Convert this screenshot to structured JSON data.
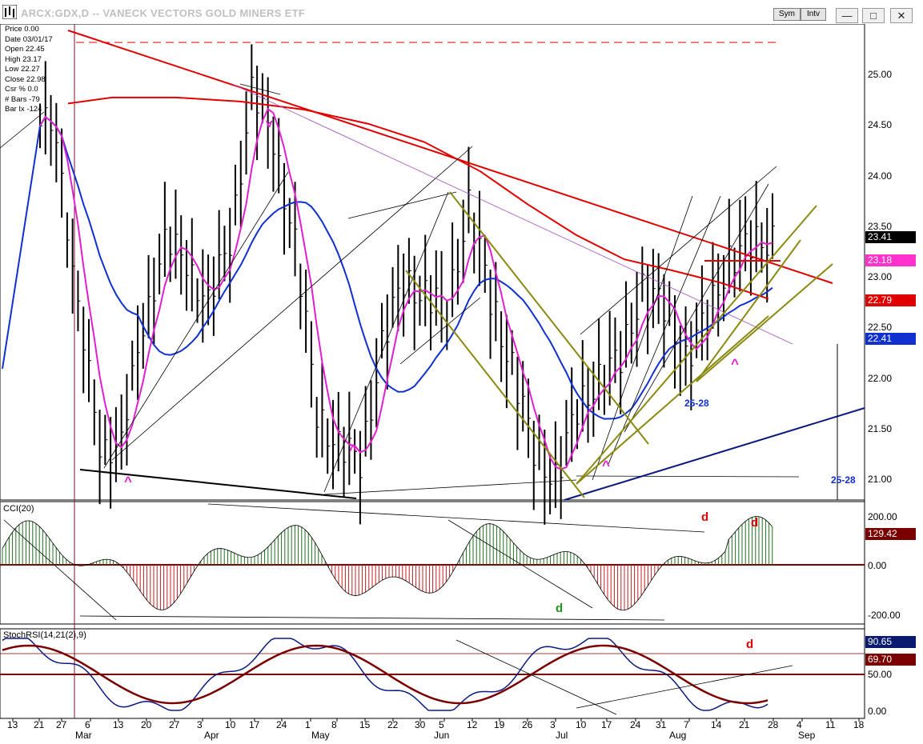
{
  "window": {
    "title": "ARCX:GDX,D -- VANECK VECTORS GOLD MINERS ETF",
    "buttons": [
      "Sym",
      "Intv"
    ]
  },
  "info_panel": [
    {
      "label": "Price",
      "value": "0.00"
    },
    {
      "label": "Date",
      "value": "03/01/17"
    },
    {
      "label": "Open",
      "value": "22.45"
    },
    {
      "label": "High",
      "value": "23.17"
    },
    {
      "label": "Low",
      "value": "22.27"
    },
    {
      "label": "Close",
      "value": "22.98"
    },
    {
      "label": "Csr %",
      "value": "0.0"
    },
    {
      "label": "# Bars",
      "value": "-79"
    },
    {
      "label": "Bar Ix",
      "value": "-124"
    }
  ],
  "panels": {
    "cci_title": "CCI(20)",
    "stochrsi_title": "StochRSI(14,21(2),9)"
  },
  "price_axis": [
    "25.00",
    "24.50",
    "24.00",
    "23.50",
    "23.00",
    "22.50",
    "22.00",
    "21.50",
    "21.00"
  ],
  "cci_axis": [
    "200.00",
    "0.00",
    "-200.00"
  ],
  "stoch_axis": [
    "50.00",
    "0.00"
  ],
  "value_tags": [
    {
      "value": "23.41",
      "color": "#000000"
    },
    {
      "value": "23.18",
      "color": "#ff33cc"
    },
    {
      "value": "22.79",
      "color": "#e00000"
    },
    {
      "value": "22.41",
      "color": "#1030d0"
    },
    {
      "value": "129.42",
      "color": "#7a0000"
    },
    {
      "value": "90.65",
      "color": "#0a1a70"
    },
    {
      "value": "69.70",
      "color": "#7a0000"
    }
  ],
  "x_axis": {
    "days": [
      "13",
      "21",
      "27",
      "6",
      "13",
      "20",
      "27",
      "3",
      "10",
      "17",
      "24",
      "1",
      "8",
      "15",
      "22",
      "30",
      "5",
      "12",
      "19",
      "26",
      "3",
      "10",
      "17",
      "24",
      "31",
      "7",
      "14",
      "21",
      "28",
      "4",
      "11",
      "18"
    ],
    "months": [
      "Mar",
      "Apr",
      "May",
      "Jun",
      "Jul",
      "Aug",
      "Sep"
    ]
  },
  "annotations": {
    "caret": "^",
    "v_mark": "v",
    "d_mark": "d",
    "cycle_label": "25-28"
  },
  "chart_data": {
    "type": "bar",
    "title": "ARCX:GDX,D -- VANECK VECTORS GOLD MINERS ETF",
    "price_range": [
      20.8,
      25.4
    ],
    "last_close": 23.41,
    "ohlc_legend": {
      "open": 22.45,
      "high": 23.17,
      "low": 22.27,
      "close": 22.98
    },
    "series": [
      {
        "name": "pink moving average (last)",
        "value": 23.18
      },
      {
        "name": "red moving average (last)",
        "value": 22.79
      },
      {
        "name": "blue moving average (last)",
        "value": 22.41
      }
    ],
    "indicators": {
      "CCI(20)": {
        "last": 129.42,
        "range": [
          -200,
          200
        ]
      },
      "StochRSI(14,21(2),9)": {
        "k_last": 90.65,
        "d_last": 69.7,
        "range": [
          0,
          100
        ]
      }
    },
    "closes_approx": [
      24.5,
      22.6,
      21.4,
      21.3,
      22.6,
      23.3,
      23.2,
      22.7,
      23.4,
      24.8,
      24.4,
      23.3,
      21.7,
      21.3,
      21.2,
      22.3,
      23.0,
      22.8,
      22.7,
      23.7,
      22.8,
      22.1,
      21.3,
      21.0,
      21.7,
      22.0,
      22.2,
      22.9,
      22.7,
      22.2,
      22.6,
      23.2,
      23.3,
      23.41
    ]
  }
}
